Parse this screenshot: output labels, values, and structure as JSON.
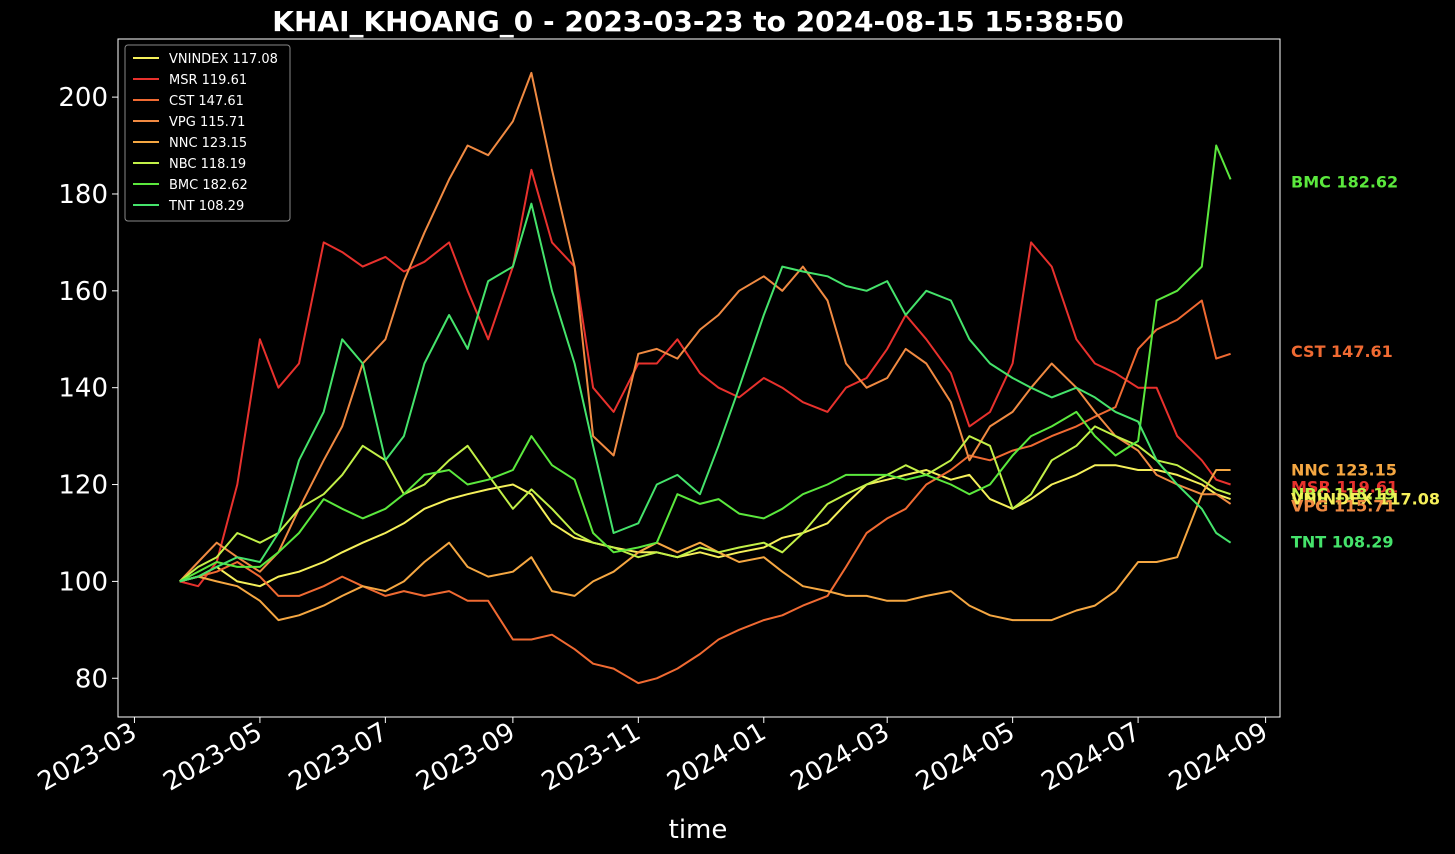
{
  "chart_data": {
    "type": "line",
    "title": "KHAI_KHOANG_0 - 2023-03-23 to 2024-08-15 15:38:50",
    "xlabel": "time",
    "ylabel": "",
    "ylim": [
      72,
      212
    ],
    "xlim": [
      "2023-02-21",
      "2024-09-08"
    ],
    "background": "#000000",
    "grid": false,
    "legend_position": "top-left",
    "x_ticks": [
      "2023-03",
      "2023-05",
      "2023-07",
      "2023-09",
      "2023-11",
      "2024-01",
      "2024-03",
      "2024-05",
      "2024-07",
      "2024-09"
    ],
    "y_ticks": [
      80,
      100,
      120,
      140,
      160,
      180,
      200
    ],
    "x": [
      "2023-03-23",
      "2023-04-01",
      "2023-04-10",
      "2023-04-20",
      "2023-05-01",
      "2023-05-10",
      "2023-05-20",
      "2023-06-01",
      "2023-06-10",
      "2023-06-20",
      "2023-07-01",
      "2023-07-10",
      "2023-07-20",
      "2023-08-01",
      "2023-08-10",
      "2023-08-20",
      "2023-09-01",
      "2023-09-10",
      "2023-09-20",
      "2023-10-01",
      "2023-10-10",
      "2023-10-20",
      "2023-11-01",
      "2023-11-10",
      "2023-11-20",
      "2023-12-01",
      "2023-12-10",
      "2023-12-20",
      "2024-01-01",
      "2024-01-10",
      "2024-01-20",
      "2024-02-01",
      "2024-02-10",
      "2024-02-20",
      "2024-03-01",
      "2024-03-10",
      "2024-03-20",
      "2024-04-01",
      "2024-04-10",
      "2024-04-20",
      "2024-05-01",
      "2024-05-10",
      "2024-05-20",
      "2024-06-01",
      "2024-06-10",
      "2024-06-20",
      "2024-07-01",
      "2024-07-10",
      "2024-07-20",
      "2024-08-01",
      "2024-08-08",
      "2024-08-15"
    ],
    "series": [
      {
        "name": "VNINDEX",
        "label": "VNINDEX 117.08",
        "color": "#f5f05a",
        "values": [
          100,
          101,
          103,
          100,
          99,
          101,
          102,
          104,
          106,
          108,
          110,
          112,
          115,
          117,
          118,
          119,
          120,
          118,
          112,
          109,
          108,
          107,
          106,
          106,
          105,
          106,
          105,
          106,
          107,
          109,
          110,
          112,
          116,
          120,
          121,
          122,
          123,
          121,
          122,
          117,
          115,
          117,
          120,
          122,
          124,
          124,
          123,
          123,
          122,
          120,
          118,
          117
        ]
      },
      {
        "name": "MSR",
        "label": "MSR 119.61",
        "color": "#e8312d",
        "values": [
          100,
          99,
          104,
          120,
          150,
          140,
          145,
          170,
          168,
          165,
          167,
          164,
          166,
          170,
          160,
          150,
          165,
          185,
          170,
          165,
          140,
          135,
          145,
          145,
          150,
          143,
          140,
          138,
          142,
          140,
          137,
          135,
          140,
          142,
          148,
          155,
          150,
          143,
          132,
          135,
          145,
          170,
          165,
          150,
          145,
          143,
          140,
          140,
          130,
          125,
          121,
          120
        ]
      },
      {
        "name": "CST",
        "label": "CST 147.61",
        "color": "#f06a32",
        "values": [
          100,
          101,
          102,
          104,
          101,
          97,
          97,
          99,
          101,
          99,
          97,
          98,
          97,
          98,
          96,
          96,
          88,
          88,
          89,
          86,
          83,
          82,
          79,
          80,
          82,
          85,
          88,
          90,
          92,
          93,
          95,
          97,
          103,
          110,
          113,
          115,
          120,
          123,
          126,
          125,
          127,
          128,
          130,
          132,
          134,
          136,
          148,
          152,
          154,
          158,
          146,
          147
        ]
      },
      {
        "name": "VPG",
        "label": "VPG 115.71",
        "color": "#f08a42",
        "values": [
          100,
          104,
          108,
          105,
          102,
          106,
          115,
          125,
          132,
          145,
          150,
          162,
          172,
          183,
          190,
          188,
          195,
          205,
          185,
          165,
          130,
          126,
          147,
          148,
          146,
          152,
          155,
          160,
          163,
          160,
          165,
          158,
          145,
          140,
          142,
          148,
          145,
          137,
          125,
          132,
          135,
          140,
          145,
          140,
          135,
          130,
          127,
          122,
          120,
          118,
          118,
          116
        ]
      },
      {
        "name": "NNC",
        "label": "NNC 123.15",
        "color": "#f5a742",
        "values": [
          100,
          101,
          100,
          99,
          96,
          92,
          93,
          95,
          97,
          99,
          98,
          100,
          104,
          108,
          103,
          101,
          102,
          105,
          98,
          97,
          100,
          102,
          106,
          108,
          106,
          108,
          106,
          104,
          105,
          102,
          99,
          98,
          97,
          97,
          96,
          96,
          97,
          98,
          95,
          93,
          92,
          92,
          92,
          94,
          95,
          98,
          104,
          104,
          105,
          118,
          123,
          123
        ]
      },
      {
        "name": "NBC",
        "label": "NBC 118.19",
        "color": "#c2f048",
        "values": [
          100,
          103,
          105,
          110,
          108,
          110,
          115,
          118,
          122,
          128,
          125,
          118,
          120,
          125,
          128,
          122,
          115,
          119,
          115,
          110,
          108,
          107,
          105,
          106,
          105,
          107,
          106,
          107,
          108,
          106,
          110,
          116,
          118,
          120,
          122,
          124,
          122,
          125,
          130,
          128,
          115,
          118,
          125,
          128,
          132,
          130,
          128,
          125,
          124,
          121,
          119,
          118
        ]
      },
      {
        "name": "BMC",
        "label": "BMC 182.62",
        "color": "#5be83d",
        "values": [
          100,
          102,
          104,
          103,
          103,
          106,
          110,
          117,
          115,
          113,
          115,
          118,
          122,
          123,
          120,
          121,
          123,
          130,
          124,
          121,
          110,
          106,
          107,
          108,
          118,
          116,
          117,
          114,
          113,
          115,
          118,
          120,
          122,
          122,
          122,
          121,
          122,
          120,
          118,
          120,
          126,
          130,
          132,
          135,
          130,
          126,
          129,
          158,
          160,
          165,
          190,
          183
        ]
      },
      {
        "name": "TNT",
        "label": "TNT 108.29",
        "color": "#45e36b",
        "values": [
          100,
          101,
          103,
          105,
          104,
          110,
          125,
          135,
          150,
          145,
          125,
          130,
          145,
          155,
          148,
          162,
          165,
          178,
          160,
          145,
          128,
          110,
          112,
          120,
          122,
          118,
          128,
          140,
          155,
          165,
          164,
          163,
          161,
          160,
          162,
          155,
          160,
          158,
          150,
          145,
          142,
          140,
          138,
          140,
          138,
          135,
          133,
          125,
          120,
          115,
          110,
          108
        ]
      }
    ],
    "end_labels": [
      {
        "name": "BMC",
        "text": "BMC 182.62",
        "value": 182.62,
        "color": "#5be83d"
      },
      {
        "name": "CST",
        "text": "CST 147.61",
        "value": 147.61,
        "color": "#f06a32"
      },
      {
        "name": "NNC",
        "text": "NNC 123.15",
        "value": 123.15,
        "color": "#f5a742"
      },
      {
        "name": "MSR",
        "text": "MSR 119.61",
        "value": 119.61,
        "color": "#e8312d"
      },
      {
        "name": "NBC",
        "text": "NBC 118.19",
        "value": 118.19,
        "color": "#c2f048"
      },
      {
        "name": "VNINDEX",
        "text": "VNINDEX 117.08",
        "value": 117.08,
        "color": "#f5f05a"
      },
      {
        "name": "VPG",
        "text": "VPG 115.71",
        "value": 115.71,
        "color": "#f08a42"
      },
      {
        "name": "TNT",
        "text": "TNT 108.29",
        "value": 108.29,
        "color": "#45e36b"
      }
    ]
  }
}
